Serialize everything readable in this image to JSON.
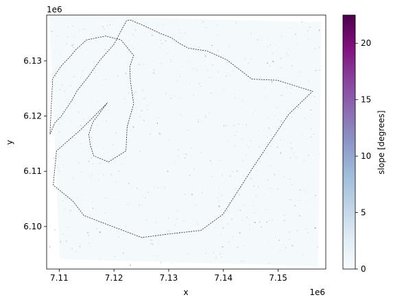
{
  "chart_data": {
    "type": "heatmap",
    "xlabel": "x",
    "ylabel": "y",
    "x_offset_text": "1e6",
    "y_offset_text": "1e6",
    "xlim": [
      7.1077,
      7.1587
    ],
    "ylim": [
      6.0923,
      6.1383
    ],
    "x_ticks": [
      {
        "value": 7.11,
        "label": "7.11"
      },
      {
        "value": 7.12,
        "label": "7.12"
      },
      {
        "value": 7.13,
        "label": "7.13"
      },
      {
        "value": 7.14,
        "label": "7.14"
      },
      {
        "value": 7.15,
        "label": "7.15"
      }
    ],
    "y_ticks": [
      {
        "value": 6.1,
        "label": "6.10"
      },
      {
        "value": 6.11,
        "label": "6.11"
      },
      {
        "value": 6.12,
        "label": "6.12"
      },
      {
        "value": 6.13,
        "label": "6.13"
      }
    ],
    "colorbar": {
      "label": "slope [degrees]",
      "colormap": "BuPu",
      "vmin": 0,
      "vmax": 22.5,
      "ticks": [
        {
          "value": 0,
          "label": "0"
        },
        {
          "value": 5,
          "label": "5"
        },
        {
          "value": 10,
          "label": "10"
        },
        {
          "value": 15,
          "label": "15"
        },
        {
          "value": 20,
          "label": "20"
        }
      ],
      "stops": [
        "#f7fcfd",
        "#e0ecf4",
        "#bfd3e6",
        "#9ebcda",
        "#8c96c6",
        "#8c6bb1",
        "#88419d",
        "#810f7c",
        "#4d004b"
      ]
    },
    "raster_footprint": [
      [
        7.1082,
        6.1383
      ],
      [
        7.1579,
        6.137
      ],
      [
        7.1573,
        6.0928
      ],
      [
        7.1101,
        6.0941
      ]
    ],
    "boundary_polygon": [
      [
        7.1083,
        6.1167
      ],
      [
        7.1092,
        6.1188
      ],
      [
        7.1104,
        6.12
      ],
      [
        7.1124,
        6.123
      ],
      [
        7.1132,
        6.1245
      ],
      [
        7.1152,
        6.127
      ],
      [
        7.1175,
        6.1302
      ],
      [
        7.12,
        6.133
      ],
      [
        7.1223,
        6.1373
      ],
      [
        7.123,
        6.1374
      ],
      [
        7.1252,
        6.1365
      ],
      [
        7.1284,
        6.135
      ],
      [
        7.1305,
        6.1342
      ],
      [
        7.1319,
        6.1332
      ],
      [
        7.1336,
        6.1323
      ],
      [
        7.137,
        6.1318
      ],
      [
        7.1406,
        6.1302
      ],
      [
        7.1452,
        6.1267
      ],
      [
        7.1498,
        6.1265
      ],
      [
        7.1563,
        6.1245
      ],
      [
        7.1519,
        6.1203
      ],
      [
        7.1454,
        6.1107
      ],
      [
        7.1399,
        6.1022
      ],
      [
        7.1359,
        6.0993
      ],
      [
        7.1296,
        6.0986
      ],
      [
        7.1251,
        6.098
      ],
      [
        7.1192,
        6.1002
      ],
      [
        7.1145,
        6.102
      ],
      [
        7.1125,
        6.1046
      ],
      [
        7.1089,
        6.1075
      ],
      [
        7.1095,
        6.1137
      ],
      [
        7.114,
        6.1176
      ],
      [
        7.1188,
        6.1224
      ],
      [
        7.1162,
        6.119
      ],
      [
        7.1154,
        6.1167
      ],
      [
        7.1157,
        6.1147
      ],
      [
        7.1163,
        6.1128
      ],
      [
        7.119,
        6.1117
      ],
      [
        7.1222,
        6.1137
      ],
      [
        7.1224,
        6.118
      ],
      [
        7.1236,
        6.1222
      ],
      [
        7.123,
        6.1264
      ],
      [
        7.1229,
        6.129
      ],
      [
        7.1236,
        6.131
      ],
      [
        7.1213,
        6.1338
      ],
      [
        7.1185,
        6.1345
      ],
      [
        7.115,
        6.1338
      ],
      [
        7.113,
        6.132
      ],
      [
        7.1122,
        6.131
      ],
      [
        7.1103,
        6.129
      ],
      [
        7.1088,
        6.1268
      ]
    ]
  }
}
